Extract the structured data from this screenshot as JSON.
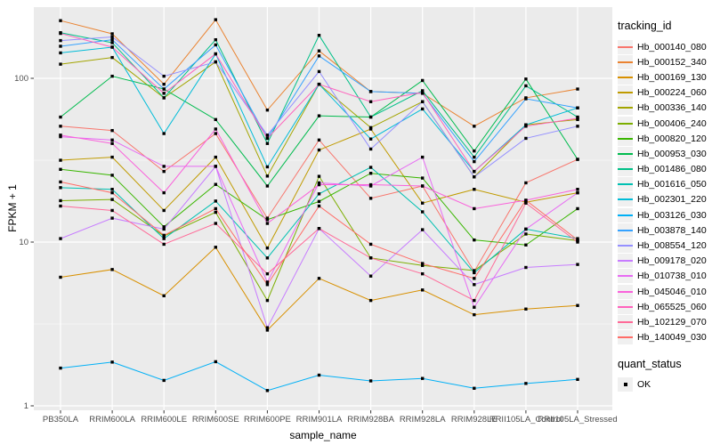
{
  "figure": {
    "background": "#ffffff",
    "panel_bg": "#EBEBEB",
    "grid_color": "#FFFFFF",
    "tick_label_color": "#4D4D4D",
    "point_color": "#000000"
  },
  "legend": {
    "tracking_title": "tracking_id",
    "quant_title": "quant_status",
    "quant_items": [
      {
        "label": "OK",
        "marker": "black-square-icon"
      }
    ]
  },
  "chart_data": {
    "type": "line",
    "title": "",
    "xlabel": "sample_name",
    "ylabel": "FPKM + 1",
    "y_scale": "log10",
    "ylim": [
      1,
      270
    ],
    "grid": "on",
    "legend_position": "right",
    "y_tick_labels": [
      "1",
      "10",
      "100"
    ],
    "y_tick_values": [
      1,
      10,
      100
    ],
    "y_minor_values": [
      3.162,
      31.62
    ],
    "categories": [
      "PB350LA",
      "RRIM600LA",
      "RRIM600LE",
      "RRIM600SE",
      "RRIM600PE",
      "RRIM901LA",
      "RRIM928BA",
      "RRIM928LA",
      "RRIM928LE",
      "RRII105LA_Control",
      "RRII105LA_Stressed"
    ],
    "point_marker": "square",
    "series": [
      {
        "name": "Hb_000140_080",
        "color": "#F8766D",
        "values": [
          51,
          48,
          27,
          46,
          14,
          42,
          18.5,
          22,
          6.6,
          23,
          32
        ]
      },
      {
        "name": "Hb_000152_340",
        "color": "#EA8331",
        "values": [
          225,
          187,
          92,
          228,
          64,
          147,
          83,
          81,
          51,
          76,
          86
        ]
      },
      {
        "name": "Hb_000169_130",
        "color": "#D89000",
        "values": [
          6.1,
          6.8,
          4.7,
          9.3,
          2.9,
          6,
          4.4,
          5.1,
          3.6,
          3.9,
          4.1
        ]
      },
      {
        "name": "Hb_000224_060",
        "color": "#C09B00",
        "values": [
          31.6,
          33,
          15.6,
          33,
          9.2,
          36.5,
          49,
          17.3,
          21,
          17.5,
          20
        ]
      },
      {
        "name": "Hb_000336_140",
        "color": "#A3A500",
        "values": [
          122,
          134,
          76,
          126,
          25.3,
          92,
          50,
          72,
          25,
          52,
          56
        ]
      },
      {
        "name": "Hb_000406_240",
        "color": "#7CAE00",
        "values": [
          17.9,
          18.2,
          10.9,
          15.2,
          4.4,
          25.2,
          8,
          7.2,
          6.7,
          11.2,
          10.2
        ]
      },
      {
        "name": "Hb_000820_120",
        "color": "#39B600",
        "values": [
          27.8,
          25.6,
          12.4,
          22.5,
          13.7,
          17.7,
          26.3,
          24.6,
          10.3,
          9.6,
          16
        ]
      },
      {
        "name": "Hb_000953_030",
        "color": "#00BB4E",
        "values": [
          58,
          103,
          86,
          56,
          22,
          59,
          58,
          97,
          36,
          99,
          32
        ]
      },
      {
        "name": "Hb_001486_080",
        "color": "#00C087",
        "values": [
          190,
          165,
          76,
          172,
          40,
          183,
          58,
          84,
          33,
          90,
          58
        ]
      },
      {
        "name": "Hb_001616_050",
        "color": "#00C0B2",
        "values": [
          21.5,
          21,
          10.5,
          17.8,
          8,
          19.7,
          28.6,
          15.3,
          6.5,
          12,
          10.5
        ]
      },
      {
        "name": "Hb_002301_220",
        "color": "#00BCD8",
        "values": [
          143,
          155,
          46,
          141,
          28.8,
          92,
          42.6,
          65,
          27,
          52,
          66
        ]
      },
      {
        "name": "Hb_003126_030",
        "color": "#00B0F6",
        "values": [
          1.7,
          1.85,
          1.43,
          1.86,
          1.24,
          1.54,
          1.42,
          1.47,
          1.28,
          1.37,
          1.45
        ]
      },
      {
        "name": "Hb_003878_140",
        "color": "#35A2FF",
        "values": [
          157,
          172,
          86,
          160,
          43,
          137,
          83,
          81,
          31,
          75,
          66
        ]
      },
      {
        "name": "Hb_008554_120",
        "color": "#9590FF",
        "values": [
          170,
          179,
          103,
          126,
          45,
          110,
          37,
          72,
          25,
          43,
          51
        ]
      },
      {
        "name": "Hb_009178_020",
        "color": "#C77CFF",
        "values": [
          10.5,
          14,
          12,
          29,
          3,
          12.1,
          6.2,
          11.9,
          5.5,
          7,
          7.3
        ]
      },
      {
        "name": "Hb_010738_010",
        "color": "#E76BF3",
        "values": [
          44,
          42,
          29,
          29,
          5.7,
          23,
          22,
          33,
          4,
          12,
          20
        ]
      },
      {
        "name": "Hb_045046_010",
        "color": "#FA62DB",
        "values": [
          45,
          40,
          20,
          49,
          13,
          22.4,
          22.4,
          22,
          16,
          18,
          21
        ]
      },
      {
        "name": "Hb_065525_060",
        "color": "#FF62BC",
        "values": [
          188,
          155,
          81,
          141,
          43,
          92,
          72,
          82,
          27,
          51,
          57
        ]
      },
      {
        "name": "Hb_102129_070",
        "color": "#FF6A98",
        "values": [
          16.6,
          15.6,
          9.7,
          13,
          6.4,
          12.1,
          8,
          6.4,
          4.4,
          17.3,
          10
        ]
      },
      {
        "name": "Hb_140049_030",
        "color": "#FF6C67",
        "values": [
          23.3,
          20,
          11,
          16,
          5.5,
          16.6,
          9.7,
          7.4,
          6,
          18,
          10.3
        ]
      }
    ]
  }
}
